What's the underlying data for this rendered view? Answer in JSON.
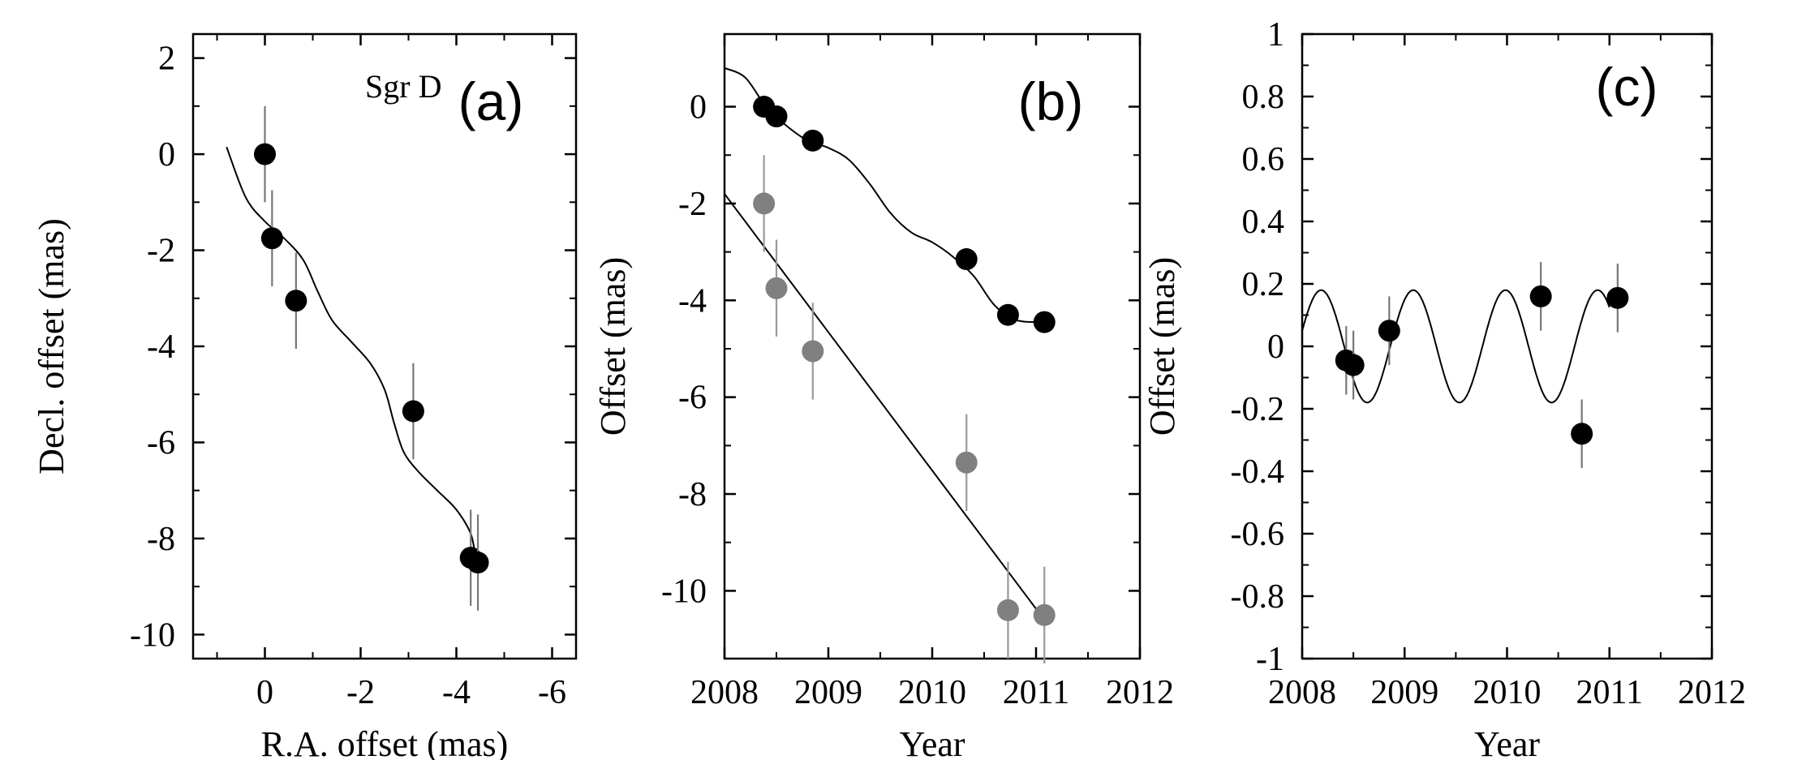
{
  "chart_data": [
    {
      "type": "scatter",
      "panel_label": "(a)",
      "annotation": "Sgr D",
      "xlabel": "R.A. offset (mas)",
      "ylabel": "Decl. offset (mas)",
      "xlim": [
        1.5,
        -6.5
      ],
      "ylim": [
        -10.5,
        2.5
      ],
      "x_reversed": true,
      "xticks": [
        0,
        -2,
        -4,
        -6
      ],
      "xtick_labels": [
        "0",
        "-2",
        "-4",
        "-6"
      ],
      "yticks": [
        2,
        0,
        -2,
        -4,
        -6,
        -8,
        -10
      ],
      "ytick_labels": [
        "2",
        "0",
        "-2",
        "-4",
        "-6",
        "-8",
        "-10"
      ],
      "points": [
        {
          "x": 0.0,
          "y": 0.0,
          "yerr": 1.0
        },
        {
          "x": -0.15,
          "y": -1.75,
          "yerr": 1.0
        },
        {
          "x": -0.65,
          "y": -3.05,
          "yerr": 1.0
        },
        {
          "x": -3.1,
          "y": -5.35,
          "yerr": 1.0
        },
        {
          "x": -4.3,
          "y": -8.4,
          "yerr": 1.0
        },
        {
          "x": -4.45,
          "y": -8.5,
          "yerr": 1.0
        }
      ],
      "series": [
        {
          "type": "line",
          "x": [
            0.8,
            0.4,
            0.0,
            -0.4,
            -0.8,
            -1.1,
            -1.4,
            -1.8,
            -2.2,
            -2.5,
            -2.7,
            -2.9,
            -3.2,
            -3.6,
            -4.0,
            -4.3,
            -4.4
          ],
          "y": [
            0.15,
            -0.9,
            -1.4,
            -1.75,
            -2.2,
            -2.85,
            -3.45,
            -3.9,
            -4.35,
            -4.9,
            -5.6,
            -6.2,
            -6.6,
            -7.0,
            -7.4,
            -7.9,
            -8.4
          ]
        }
      ]
    },
    {
      "type": "scatter",
      "panel_label": "(b)",
      "xlabel": "Year",
      "ylabel": "Offset (mas)",
      "xlim": [
        2008,
        2012
      ],
      "ylim": [
        -11.4,
        1.5
      ],
      "xticks": [
        2008,
        2009,
        2010,
        2011,
        2012
      ],
      "xtick_labels": [
        "2008",
        "2009",
        "2010",
        "2011",
        "2012"
      ],
      "yticks": [
        0,
        -2,
        -4,
        -6,
        -8,
        -10
      ],
      "ytick_labels": [
        "0",
        "-2",
        "-4",
        "-6",
        "-8",
        "-10"
      ],
      "series": [
        {
          "color": "#000000",
          "x": [
            2008.38,
            2008.5,
            2008.85,
            2010.33,
            2010.73,
            2011.08
          ],
          "y": [
            0.0,
            -0.2,
            -0.7,
            -3.15,
            -4.3,
            -4.45
          ],
          "yerr": 0.0
        },
        {
          "color": "#808080",
          "x": [
            2008.38,
            2008.5,
            2008.85,
            2010.33,
            2010.73,
            2011.08
          ],
          "y": [
            -2.0,
            -3.75,
            -5.05,
            -7.35,
            -10.4,
            -10.5
          ],
          "yerr": 1.0
        },
        {
          "type": "line",
          "color": "#000000",
          "x": [
            2008.0,
            2008.2,
            2008.4,
            2008.6,
            2008.8,
            2009.0,
            2009.2,
            2009.4,
            2009.6,
            2009.8,
            2010.0,
            2010.2,
            2010.4,
            2010.6,
            2010.8,
            2011.0,
            2011.08
          ],
          "y": [
            0.8,
            0.6,
            0.0,
            -0.4,
            -0.7,
            -0.85,
            -1.1,
            -1.6,
            -2.2,
            -2.6,
            -2.8,
            -3.1,
            -3.5,
            -4.1,
            -4.4,
            -4.45,
            -4.45
          ]
        },
        {
          "type": "line",
          "color": "#000000",
          "x": [
            2008.0,
            2011.08
          ],
          "y": [
            -1.8,
            -10.6
          ]
        }
      ]
    },
    {
      "type": "scatter",
      "panel_label": "(c)",
      "xlabel": "Year",
      "ylabel": "Offset (mas)",
      "xlim": [
        2008,
        2012
      ],
      "ylim": [
        -1,
        1
      ],
      "xticks": [
        2008,
        2009,
        2010,
        2011,
        2012
      ],
      "xtick_labels": [
        "2008",
        "2009",
        "2010",
        "2011",
        "2012"
      ],
      "yticks": [
        1,
        0.8,
        0.6,
        0.4,
        0.2,
        0,
        -0.2,
        -0.4,
        -0.6,
        -0.8,
        -1
      ],
      "ytick_labels": [
        "1",
        "0.8",
        "0.6",
        "0.4",
        "0.2",
        "0",
        "-0.2",
        "-0.4",
        "-0.6",
        "-0.8",
        "-1"
      ],
      "points": [
        {
          "x": 2008.43,
          "y": -0.045,
          "yerr": 0.11
        },
        {
          "x": 2008.5,
          "y": -0.06,
          "yerr": 0.11
        },
        {
          "x": 2008.85,
          "y": 0.05,
          "yerr": 0.11
        },
        {
          "x": 2010.33,
          "y": 0.16,
          "yerr": 0.11
        },
        {
          "x": 2010.73,
          "y": -0.28,
          "yerr": 0.11
        },
        {
          "x": 2011.08,
          "y": 0.155,
          "yerr": 0.11
        }
      ],
      "curve": {
        "type": "sinusoid",
        "amplitude": 0.18,
        "period_years": 0.9,
        "x_start": 2008.0,
        "x_end": 2011.0,
        "phase_zero_at": 2007.96
      }
    }
  ]
}
